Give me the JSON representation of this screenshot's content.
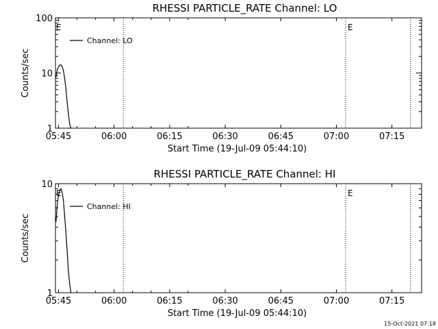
{
  "chart_data": [
    {
      "type": "line",
      "title": "RHESSI PARTICLE_RATE Channel: LO",
      "xlabel": "Start Time (19-Jul-09 05:44:10)",
      "ylabel": "Counts/sec",
      "yscale": "log",
      "ylim": [
        1,
        100
      ],
      "y_ticks": [
        "1",
        "10",
        "100"
      ],
      "xlim": [
        "05:44:10",
        "07:23:00"
      ],
      "x_ticks": [
        "05:45",
        "06:00",
        "06:15",
        "06:30",
        "06:45",
        "07:00",
        "07:15"
      ],
      "legend": "top-left",
      "series": [
        {
          "name": "Channel: LO",
          "x": [
            "05:44:20",
            "05:44:40",
            "05:45:00",
            "05:45:20",
            "05:45:40",
            "05:46:00",
            "05:46:20",
            "05:46:40",
            "05:47:00",
            "05:47:20",
            "05:47:40",
            "05:48:00",
            "05:48:20"
          ],
          "y": [
            8.5,
            11.5,
            13.0,
            13.8,
            14.0,
            13.0,
            11.0,
            8.0,
            5.2,
            3.0,
            1.8,
            1.2,
            1.0
          ]
        }
      ],
      "markers": [
        {
          "time": "06:02:30",
          "label": ""
        },
        {
          "time": "07:02:30",
          "label": "E"
        },
        {
          "time": "07:20:00",
          "label": ""
        }
      ],
      "corner_flag": "E"
    },
    {
      "type": "line",
      "title": "RHESSI PARTICLE_RATE Channel: HI",
      "xlabel": "Start Time (19-Jul-09 05:44:10)",
      "ylabel": "Counts/sec",
      "yscale": "log",
      "ylim": [
        1,
        10
      ],
      "y_ticks": [
        "1",
        "10"
      ],
      "xlim": [
        "05:44:10",
        "07:23:00"
      ],
      "x_ticks": [
        "05:45",
        "06:00",
        "06:15",
        "06:30",
        "06:45",
        "07:00",
        "07:15"
      ],
      "legend": "top-left",
      "series": [
        {
          "name": "Channel: HI",
          "x": [
            "05:44:20",
            "05:44:40",
            "05:45:00",
            "05:45:20",
            "05:45:40",
            "05:46:00",
            "05:46:20",
            "05:46:40",
            "05:47:00",
            "05:47:20",
            "05:47:40",
            "05:48:00",
            "05:48:20"
          ],
          "y": [
            4.5,
            6.5,
            7.8,
            8.6,
            9.0,
            8.3,
            7.0,
            5.0,
            3.6,
            2.4,
            1.6,
            1.2,
            1.0
          ]
        }
      ],
      "markers": [
        {
          "time": "06:02:30",
          "label": ""
        },
        {
          "time": "07:02:30",
          "label": "E"
        },
        {
          "time": "07:20:00",
          "label": ""
        }
      ],
      "corner_flag": "E"
    }
  ],
  "timestamp": "15-Oct-2021 07:18"
}
